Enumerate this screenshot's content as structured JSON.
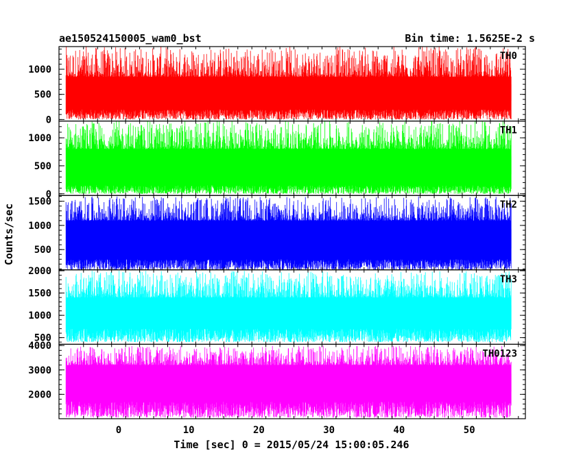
{
  "chart_data": {
    "type": "line",
    "title_left": "ae150524150005_wam0_bst",
    "title_right": "Bin time: 1.5625E-2 s",
    "xlabel": "Time [sec] 0 = 2015/05/24 15:00:05.246",
    "ylabel": "Counts/sec",
    "xlim": [
      -8.5,
      58
    ],
    "x_ticks": [
      0,
      10,
      20,
      30,
      40,
      50
    ],
    "data_x_range": [
      -7.5,
      56
    ],
    "bin_time": 0.015625,
    "panels": [
      {
        "name": "TH0",
        "color": "#ff0000",
        "ylim": [
          -30,
          1450
        ],
        "y_ticks": [
          0,
          500,
          1000
        ],
        "mean": 550,
        "low": [
          0,
          200
        ],
        "high": [
          850,
          1450
        ]
      },
      {
        "name": "TH1",
        "color": "#00ff00",
        "ylim": [
          -30,
          1300
        ],
        "y_ticks": [
          0,
          500,
          1000
        ],
        "mean": 550,
        "low": [
          0,
          150
        ],
        "high": [
          800,
          1300
        ]
      },
      {
        "name": "TH2",
        "color": "#0000ff",
        "ylim": [
          80,
          1620
        ],
        "y_ticks": [
          500,
          1000,
          1500
        ],
        "mean": 750,
        "low": [
          80,
          300
        ],
        "high": [
          1100,
          1600
        ]
      },
      {
        "name": "TH3",
        "color": "#00ffff",
        "ylim": [
          350,
          2020
        ],
        "y_ticks": [
          500,
          1000,
          1500,
          2000
        ],
        "mean": 1050,
        "low": [
          400,
          700
        ],
        "high": [
          1400,
          2000
        ]
      },
      {
        "name": "TH0123",
        "color": "#ff00ff",
        "ylim": [
          1000,
          4050
        ],
        "y_ticks": [
          2000,
          3000,
          4000
        ],
        "mean": 2500,
        "low": [
          1050,
          1700
        ],
        "high": [
          3200,
          4000
        ]
      }
    ]
  }
}
